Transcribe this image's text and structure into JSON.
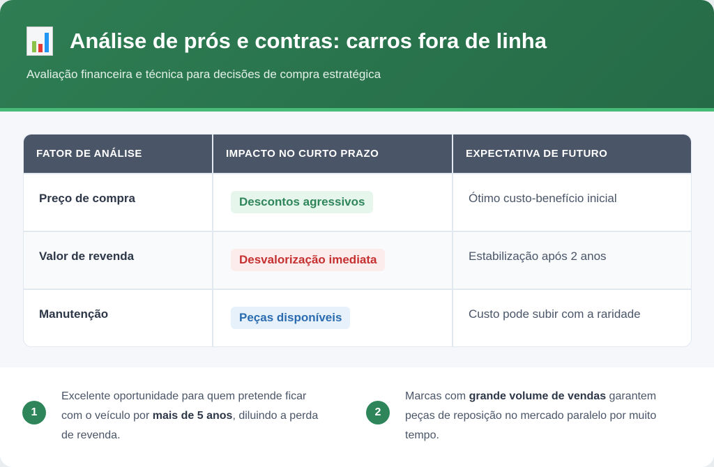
{
  "header": {
    "icon": "bar-chart-icon",
    "title": "Análise de prós e contras: carros fora de linha",
    "subtitle": "Avaliação financeira e técnica para decisões de compra estratégica"
  },
  "table": {
    "columns": [
      "FATOR DE ANÁLISE",
      "IMPACTO NO CURTO PRAZO",
      "EXPECTATIVA DE FUTURO"
    ],
    "rows": [
      {
        "factor": "Preço de compra",
        "impact": "Descontos agressivos",
        "impact_color": "#2f855a",
        "impact_bg": "#e6f6ec",
        "future": "Ótimo custo-benefício inicial"
      },
      {
        "factor": "Valor de revenda",
        "impact": "Desvalorização imediata",
        "impact_color": "#c53030",
        "impact_bg": "#fdecec",
        "future": "Estabilização após 2 anos"
      },
      {
        "factor": "Manutenção",
        "impact": "Peças disponíveis",
        "impact_color": "#2b6cb0",
        "impact_bg": "#e6f1fb",
        "future": "Custo pode subir com a raridade"
      }
    ]
  },
  "notes": [
    {
      "number": "1",
      "pre": "Excelente oportunidade para quem pretende ficar com o veículo por ",
      "bold": "mais de 5 anos",
      "post": ", diluindo a perda de revenda."
    },
    {
      "number": "2",
      "pre": "Marcas com ",
      "bold": "grande volume de vendas",
      "post": " garantem peças de reposição no mercado paralelo por muito tempo."
    }
  ],
  "colors": {
    "header_green": "#2e7d53",
    "accent_green": "#48bb78",
    "table_header": "#4a5568"
  }
}
